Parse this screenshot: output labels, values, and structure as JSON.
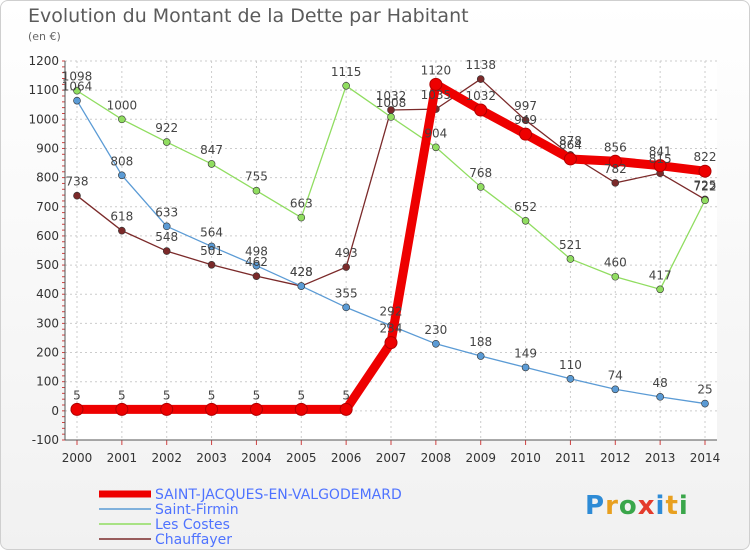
{
  "chart_data": {
    "type": "line",
    "title": "Evolution du Montant de la Dette par Habitant",
    "unit_label": "(en €)",
    "x": [
      "2000",
      "2001",
      "2002",
      "2003",
      "2004",
      "2005",
      "2006",
      "2007",
      "2008",
      "2009",
      "2010",
      "2011",
      "2012",
      "2013",
      "2014"
    ],
    "y_ticks": [
      "-100",
      "0",
      "100",
      "200",
      "300",
      "400",
      "500",
      "600",
      "700",
      "800",
      "900",
      "1000",
      "1100",
      "1200"
    ],
    "ylim": [
      -100,
      1200
    ],
    "grid": true,
    "legend_position": "bottom-left",
    "series": [
      {
        "name": "SAINT-JACQUES-EN-VALGODEMARD",
        "color": "#ee0000",
        "values": [
          5,
          5,
          5,
          5,
          5,
          5,
          5,
          234,
          1120,
          1032,
          949,
          864,
          856,
          841,
          822
        ]
      },
      {
        "name": "Saint-Firmin",
        "color": "#5b9bd5",
        "values": [
          1064,
          808,
          633,
          564,
          498,
          428,
          355,
          292,
          230,
          188,
          149,
          110,
          74,
          48,
          25
        ]
      },
      {
        "name": "Les Costes",
        "color": "#90dd60",
        "values": [
          1098,
          1000,
          922,
          847,
          755,
          663,
          1115,
          1008,
          904,
          768,
          652,
          521,
          460,
          417,
          722
        ]
      },
      {
        "name": "Chauffayer",
        "color": "#7b2a2a",
        "values": [
          738,
          618,
          548,
          501,
          462,
          428,
          493,
          1032,
          1035,
          1138,
          997,
          878,
          782,
          815,
          725
        ]
      }
    ]
  },
  "logo": {
    "letters": [
      "P",
      "r",
      "o",
      "x",
      "i",
      "t",
      "i"
    ],
    "colors": [
      "#2e8bd6",
      "#e8a020",
      "#3aa64a",
      "#e43b2c",
      "#2e8bd6",
      "#e8a020",
      "#3aa64a"
    ]
  }
}
